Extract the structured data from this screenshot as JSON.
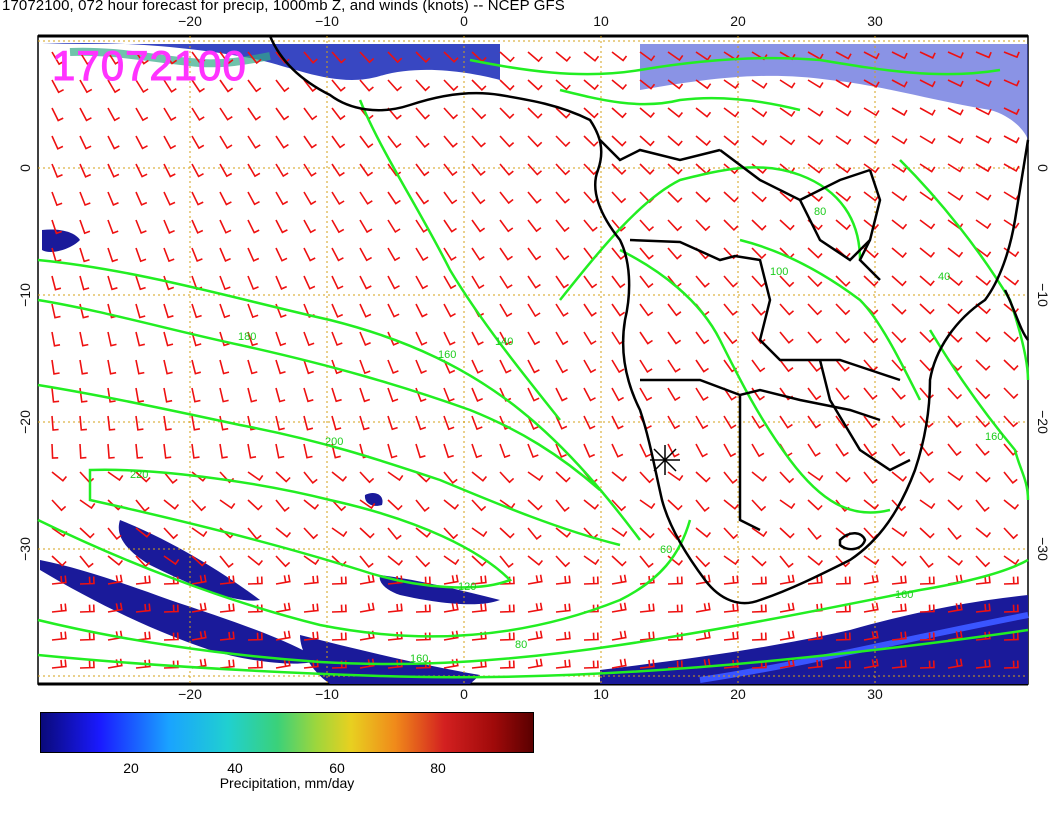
{
  "title": "17072100, 072 hour forecast for precip, 1000mb Z, and winds (knots) -- NCEP GFS",
  "stamp": "17072100",
  "lon_ticks": [
    "−20",
    "−10",
    "0",
    "10",
    "20",
    "30"
  ],
  "lat_ticks": [
    "0",
    "−10",
    "−20",
    "−30"
  ],
  "contour_labels": {
    "c180": "180",
    "c160a": "160",
    "c140": "140",
    "c200": "200",
    "c220": "220",
    "c80a": "80",
    "c100": "100",
    "c40": "40",
    "c160b": "160",
    "c60": "60",
    "c80b": "80",
    "c120": "120",
    "c160c": "160",
    "c160d": "160"
  },
  "colorbar": {
    "ticks": [
      "20",
      "40",
      "60",
      "80"
    ],
    "title": "Precipitation, mm/day"
  },
  "colors": {
    "contour": "#22ee22",
    "wind_barb": "#ee1111",
    "grid": "#d4a017",
    "coast": "#000000",
    "precip_low": "#1a1a9a",
    "stamp": "#ff33ff"
  }
}
